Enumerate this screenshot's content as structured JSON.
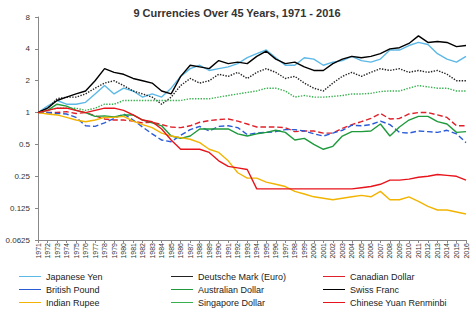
{
  "chart_data": {
    "type": "line",
    "title": "9 Currencies Over 45 Years, 1971 - 2016",
    "log": "y",
    "grid": false,
    "legend": "bottom",
    "categories": [
      "1971",
      "1972",
      "1973",
      "1974",
      "1975",
      "1976",
      "1977",
      "1978",
      "1979",
      "1980",
      "1981",
      "1982",
      "1983",
      "1984",
      "1985",
      "1986",
      "1987",
      "1988",
      "1989",
      "1990",
      "1991",
      "1992",
      "1993",
      "1994",
      "1995",
      "1996",
      "1997",
      "1998",
      "1999",
      "2000",
      "2001",
      "2002",
      "2003",
      "2004",
      "2005",
      "2006",
      "2007",
      "2008",
      "2009",
      "2010",
      "2011",
      "2012",
      "2013",
      "2014",
      "2015",
      "2016"
    ],
    "ylim": [
      0.0625,
      8
    ],
    "yticks": [
      0.0625,
      0.125,
      0.25,
      0.5,
      1,
      2,
      4,
      8
    ],
    "series": [
      {
        "name": "Japanese Yen",
        "color": "#5cb8e6",
        "line_style": "solid",
        "values": [
          1,
          1.15,
          1.3,
          1.2,
          1.2,
          1.25,
          1.5,
          1.8,
          1.5,
          1.7,
          1.6,
          1.4,
          1.5,
          1.4,
          1.7,
          2.2,
          2.6,
          2.8,
          2.5,
          2.6,
          2.7,
          2.9,
          3.3,
          3.6,
          3.9,
          3.3,
          2.8,
          2.8,
          3.3,
          3.2,
          2.8,
          3.0,
          3.1,
          3.4,
          3.1,
          3.0,
          3.2,
          3.9,
          3.9,
          4.3,
          4.6,
          4.4,
          3.6,
          3.2,
          3.0,
          3.4
        ]
      },
      {
        "name": "Deutsche Mark (Euro)",
        "color": "#222222",
        "line_style": "dotted",
        "values": [
          1,
          1.1,
          1.35,
          1.4,
          1.4,
          1.5,
          1.7,
          1.9,
          2.0,
          1.8,
          1.6,
          1.5,
          1.4,
          1.2,
          1.4,
          1.8,
          2.1,
          1.9,
          2.0,
          2.3,
          2.2,
          2.4,
          2.1,
          2.4,
          2.6,
          2.4,
          2.1,
          2.2,
          1.9,
          1.7,
          1.6,
          1.9,
          2.2,
          2.4,
          2.2,
          2.4,
          2.6,
          2.5,
          2.6,
          2.4,
          2.5,
          2.4,
          2.5,
          2.3,
          2.0,
          2.0
        ]
      },
      {
        "name": "Canadian Dollar",
        "color": "#e0202a",
        "line_style": "dashed",
        "values": [
          1,
          1.0,
          1.0,
          1.02,
          0.98,
          1.0,
          0.93,
          0.87,
          0.85,
          0.85,
          0.83,
          0.8,
          0.81,
          0.77,
          0.73,
          0.72,
          0.75,
          0.81,
          0.84,
          0.86,
          0.87,
          0.83,
          0.78,
          0.73,
          0.73,
          0.73,
          0.72,
          0.66,
          0.67,
          0.67,
          0.64,
          0.64,
          0.71,
          0.77,
          0.82,
          0.88,
          0.98,
          0.87,
          0.88,
          0.97,
          1.0,
          1.0,
          0.95,
          0.9,
          0.75,
          0.75
        ]
      },
      {
        "name": "British Pound",
        "color": "#2a5bd7",
        "line_style": "dashed",
        "values": [
          1,
          1.0,
          0.98,
          0.97,
          0.9,
          0.75,
          0.74,
          0.8,
          0.88,
          0.97,
          0.85,
          0.73,
          0.63,
          0.55,
          0.53,
          0.61,
          0.69,
          0.74,
          0.67,
          0.74,
          0.75,
          0.72,
          0.62,
          0.64,
          0.65,
          0.66,
          0.69,
          0.69,
          0.67,
          0.63,
          0.6,
          0.64,
          0.68,
          0.76,
          0.75,
          0.77,
          0.83,
          0.77,
          0.65,
          0.64,
          0.67,
          0.66,
          0.65,
          0.68,
          0.63,
          0.52
        ]
      },
      {
        "name": "Australian Dollar",
        "color": "#1e9a3c",
        "line_style": "solid",
        "values": [
          1,
          1.05,
          1.2,
          1.15,
          1.05,
          1.0,
          0.92,
          0.93,
          0.91,
          0.95,
          0.95,
          0.85,
          0.8,
          0.75,
          0.6,
          0.57,
          0.6,
          0.7,
          0.7,
          0.7,
          0.7,
          0.63,
          0.6,
          0.63,
          0.65,
          0.68,
          0.65,
          0.55,
          0.57,
          0.5,
          0.45,
          0.48,
          0.6,
          0.66,
          0.66,
          0.67,
          0.78,
          0.6,
          0.73,
          0.85,
          0.92,
          0.92,
          0.82,
          0.78,
          0.65,
          0.66
        ]
      },
      {
        "name": "Swiss Franc",
        "color": "#000000",
        "line_style": "solid",
        "values": [
          1,
          1.1,
          1.3,
          1.4,
          1.5,
          1.6,
          2.0,
          2.6,
          2.4,
          2.3,
          2.1,
          2.0,
          1.9,
          1.6,
          1.5,
          2.2,
          2.8,
          2.7,
          2.6,
          3.1,
          2.9,
          3.0,
          2.9,
          3.4,
          3.8,
          3.2,
          2.9,
          3.0,
          2.7,
          2.5,
          2.5,
          2.9,
          3.2,
          3.4,
          3.3,
          3.4,
          3.6,
          4.0,
          4.1,
          4.5,
          5.3,
          4.6,
          4.7,
          4.6,
          4.2,
          4.3
        ]
      },
      {
        "name": "Indian Rupee",
        "color": "#f2b400",
        "line_style": "solid",
        "values": [
          1,
          0.97,
          0.95,
          0.9,
          0.85,
          0.82,
          0.85,
          0.9,
          0.9,
          0.92,
          0.83,
          0.77,
          0.72,
          0.64,
          0.6,
          0.58,
          0.56,
          0.52,
          0.45,
          0.42,
          0.35,
          0.27,
          0.24,
          0.24,
          0.22,
          0.21,
          0.2,
          0.18,
          0.17,
          0.16,
          0.155,
          0.15,
          0.155,
          0.16,
          0.165,
          0.16,
          0.18,
          0.15,
          0.15,
          0.16,
          0.145,
          0.13,
          0.12,
          0.12,
          0.115,
          0.11
        ]
      },
      {
        "name": "Singapore Dollar",
        "color": "#38b050",
        "line_style": "dotted",
        "values": [
          1,
          1.05,
          1.1,
          1.1,
          1.1,
          1.05,
          1.1,
          1.2,
          1.2,
          1.3,
          1.3,
          1.3,
          1.3,
          1.3,
          1.3,
          1.3,
          1.35,
          1.35,
          1.35,
          1.4,
          1.45,
          1.5,
          1.55,
          1.6,
          1.7,
          1.7,
          1.6,
          1.4,
          1.45,
          1.4,
          1.4,
          1.42,
          1.45,
          1.5,
          1.5,
          1.52,
          1.58,
          1.6,
          1.6,
          1.7,
          1.8,
          1.75,
          1.7,
          1.7,
          1.6,
          1.6
        ]
      },
      {
        "name": "Chinese Yuan Renminbi",
        "color": "#e8141c",
        "line_style": "solid",
        "values": [
          1,
          1.05,
          1.1,
          1.1,
          1.05,
          1.0,
          1.05,
          1.1,
          1.1,
          1.05,
          0.95,
          0.85,
          0.82,
          0.7,
          0.55,
          0.45,
          0.45,
          0.45,
          0.42,
          0.35,
          0.31,
          0.3,
          0.29,
          0.19,
          0.19,
          0.19,
          0.19,
          0.19,
          0.19,
          0.19,
          0.19,
          0.19,
          0.19,
          0.19,
          0.195,
          0.2,
          0.21,
          0.23,
          0.23,
          0.235,
          0.245,
          0.25,
          0.26,
          0.255,
          0.25,
          0.23
        ]
      }
    ]
  }
}
